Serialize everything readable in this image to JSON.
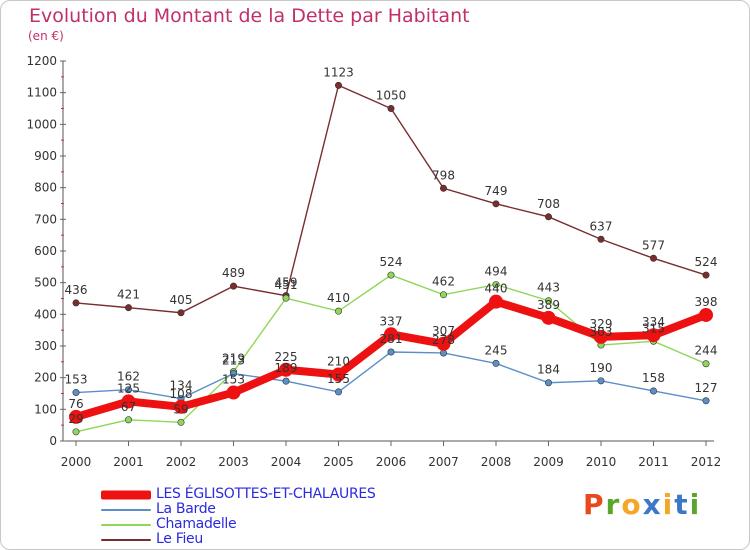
{
  "title": "Evolution du Montant de la Dette par Habitant",
  "unit": "(en €)",
  "logo": {
    "text": "Proxiti",
    "colors": [
      "#e8491d",
      "#5aa52b",
      "#f5a623",
      "#3c78c8",
      "#f5a623",
      "#3c78c8",
      "#5aa52b"
    ]
  },
  "chart_data": {
    "type": "line",
    "title": "Evolution du Montant de la Dette par Habitant",
    "ylabel": "(en €)",
    "xlabel": "",
    "ylim": [
      0,
      1200
    ],
    "yticks": [
      "0",
      "100",
      "200",
      "300",
      "400",
      "500",
      "600",
      "700",
      "800",
      "900",
      "1000",
      "1100",
      "1200"
    ],
    "categories": [
      "2000",
      "2001",
      "2002",
      "2003",
      "2004",
      "2005",
      "2006",
      "2007",
      "2008",
      "2009",
      "2010",
      "2011",
      "2012"
    ],
    "legend_position": "bottom-left",
    "grid": false,
    "series": [
      {
        "name": "LES ÉGLISOTTES-ET-CHALAURES",
        "color": "#ee1111",
        "values": [
          76,
          125,
          108,
          153,
          225,
          210,
          337,
          307,
          440,
          389,
          329,
          334,
          398
        ],
        "labels": [
          "76",
          "125",
          "108",
          "153",
          "225",
          "210",
          "337",
          "307",
          "440",
          "389",
          "329",
          "334",
          "398"
        ]
      },
      {
        "name": "La Barde",
        "color": "#5b8fc7",
        "values": [
          153,
          162,
          134,
          213,
          189,
          155,
          281,
          278,
          245,
          184,
          190,
          158,
          127
        ],
        "labels": [
          "153",
          "162",
          "134",
          "213",
          "189",
          "155",
          "281",
          "278",
          "245",
          "184",
          "190",
          "158",
          "127"
        ]
      },
      {
        "name": "Chamadelle",
        "color": "#8fd65a",
        "values": [
          29,
          67,
          59,
          219,
          451,
          410,
          524,
          462,
          494,
          443,
          303,
          315,
          244
        ],
        "labels": [
          "29",
          "67",
          "59",
          "219",
          "451",
          "410",
          "524",
          "462",
          "494",
          "443",
          "303",
          "315",
          "244"
        ]
      },
      {
        "name": "Le Fieu",
        "color": "#7a2d2d",
        "values": [
          436,
          421,
          405,
          489,
          459,
          1123,
          1050,
          798,
          749,
          708,
          637,
          577,
          524
        ],
        "labels": [
          "436",
          "421",
          "405",
          "489",
          "459",
          "1123",
          "1050",
          "798",
          "749",
          "708",
          "637",
          "577",
          "524"
        ]
      }
    ]
  }
}
